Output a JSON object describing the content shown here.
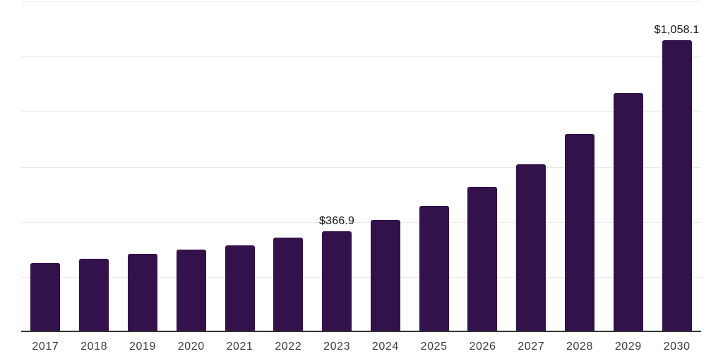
{
  "chart_data": {
    "type": "bar",
    "title": "",
    "xlabel": "",
    "ylabel": "",
    "legend": "none",
    "grid": "on",
    "categories": [
      "2017",
      "2018",
      "2019",
      "2020",
      "2021",
      "2022",
      "2023",
      "2024",
      "2025",
      "2026",
      "2027",
      "2028",
      "2029",
      "2030"
    ],
    "values": [
      251,
      266,
      284,
      300,
      315,
      343,
      366.9,
      406,
      457,
      526,
      610,
      718,
      868,
      1058.1
    ],
    "value_labels": {
      "2023": "$366.9",
      "2030": "$1,058.1"
    },
    "ylim": [
      0,
      1200
    ],
    "gridline_values": [
      200,
      400,
      600,
      800,
      1000,
      1200
    ],
    "colors": {
      "bar": "#33124C",
      "gridline": "#ebebeb",
      "axis_line": "#333333",
      "tick_label": "#3b3b3b",
      "value_label": "#111111",
      "background": "#ffffff"
    }
  }
}
